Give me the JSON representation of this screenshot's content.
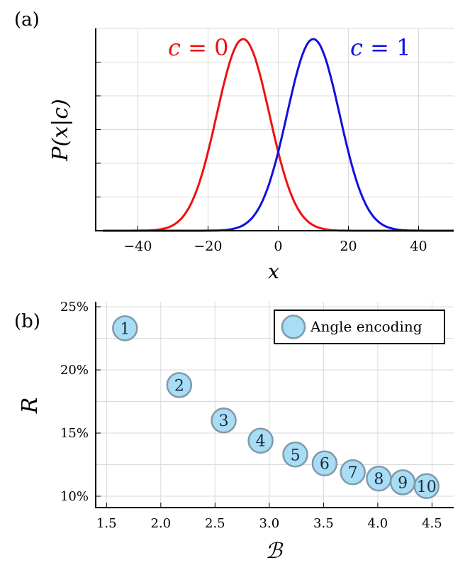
{
  "panels": {
    "a_label": "(a)",
    "b_label": "(b)"
  },
  "chart_data": [
    {
      "type": "line",
      "xlabel": "x",
      "ylabel": "P(x|c)",
      "xlim": [
        -52,
        50
      ],
      "x_ticks": [
        -40,
        -20,
        0,
        20,
        40
      ],
      "x_tick_labels": [
        "−40",
        "−20",
        "0",
        "20",
        "40"
      ],
      "grid": true,
      "y_tick_labels": false,
      "series": [
        {
          "name": "c = 0",
          "mean": -10,
          "std": 7.5,
          "color": "#ee1111",
          "label_parts": [
            "c",
            " = 0"
          ]
        },
        {
          "name": "c = 1",
          "mean": 10,
          "std": 7.5,
          "color": "#1111dd",
          "label_parts": [
            "c",
            " = 1"
          ]
        }
      ]
    },
    {
      "type": "scatter",
      "xlabel": "ℬ",
      "ylabel": "R",
      "xlim": [
        1.4,
        4.7
      ],
      "ylim": [
        9.1,
        25.4
      ],
      "x_ticks": [
        1.5,
        2.0,
        2.5,
        3.0,
        3.5,
        4.0,
        4.5
      ],
      "x_tick_labels": [
        "1.5",
        "2.0",
        "2.5",
        "3.0",
        "3.5",
        "4.0",
        "4.5"
      ],
      "y_ticks": [
        10,
        15,
        20,
        25
      ],
      "y_tick_labels": [
        "10%",
        "15%",
        "20%",
        "25%"
      ],
      "grid": true,
      "legend": {
        "position": "top-right",
        "entries": [
          "Angle encoding"
        ]
      },
      "marker_color": "#a9ddf5",
      "marker_edge": "#7f9aaa",
      "series": [
        {
          "name": "Angle encoding",
          "points": [
            {
              "label": "1",
              "x": 1.67,
              "y": 23.3
            },
            {
              "label": "2",
              "x": 2.17,
              "y": 18.8
            },
            {
              "label": "3",
              "x": 2.58,
              "y": 16.0
            },
            {
              "label": "4",
              "x": 2.92,
              "y": 14.4
            },
            {
              "label": "5",
              "x": 3.24,
              "y": 13.3
            },
            {
              "label": "6",
              "x": 3.51,
              "y": 12.6
            },
            {
              "label": "7",
              "x": 3.77,
              "y": 11.9
            },
            {
              "label": "8",
              "x": 4.01,
              "y": 11.4
            },
            {
              "label": "9",
              "x": 4.23,
              "y": 11.1
            },
            {
              "label": "10",
              "x": 4.45,
              "y": 10.8
            }
          ]
        }
      ]
    }
  ]
}
